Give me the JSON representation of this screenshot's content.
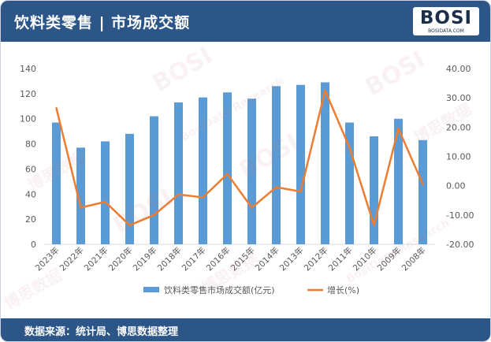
{
  "header": {
    "title": "饮料类零售 | 市场成交额"
  },
  "logo": {
    "text": "BOSI",
    "subtitle": "BOSIDATA.COM"
  },
  "footer": {
    "source": "数据来源：统计局、博思数据整理"
  },
  "watermark": {
    "brand": "BOSI",
    "cn": "博思数据",
    "en": "BosiData Research"
  },
  "colors": {
    "header_bg": "#2c5688",
    "bar": "#5b9bd5",
    "line": "#ed7d31",
    "axis_text": "#595959"
  },
  "chart_data": {
    "type": "bar",
    "categories": [
      "2023年",
      "2022年",
      "2021年",
      "2020年",
      "2019年",
      "2018年",
      "2017年",
      "2016年",
      "2015年",
      "2014年",
      "2013年",
      "2012年",
      "2011年",
      "2010年",
      "2009年",
      "2008年"
    ],
    "series": [
      {
        "name": "饮料类零售市场成交额(亿元)",
        "type": "bar",
        "axis": "left",
        "values": [
          97,
          77,
          82,
          88,
          102,
          113,
          117,
          121,
          116,
          126,
          127,
          129,
          97,
          86,
          100,
          83
        ]
      },
      {
        "name": "增长(%)",
        "type": "line",
        "axis": "right",
        "values": [
          26.5,
          -7.5,
          -5.5,
          -13.5,
          -10,
          -3,
          -4,
          4,
          -7.5,
          -0.5,
          -2,
          32.5,
          13,
          -13.5,
          19.5,
          0.5
        ]
      }
    ],
    "y_left": {
      "min": 0,
      "max": 140,
      "ticks": [
        "140",
        "120",
        "100",
        "80",
        "60",
        "40",
        "20",
        "0"
      ]
    },
    "y_right": {
      "min": -20,
      "max": 40,
      "ticks": [
        "40.00",
        "30.00",
        "20.00",
        "10.00",
        "0.00",
        "-10.00",
        "-20.00"
      ]
    },
    "legend": {
      "position": "bottom"
    },
    "grid": false
  }
}
